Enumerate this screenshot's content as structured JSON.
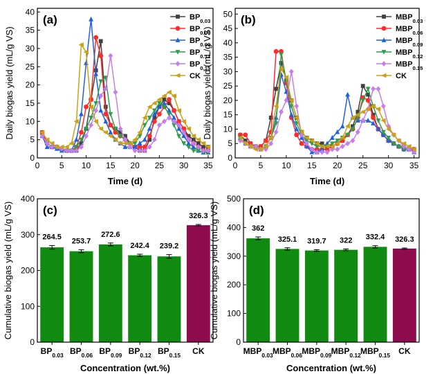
{
  "chart_data": [
    {
      "panel_label": "(a)",
      "type": "line",
      "xlabel": "Time (d)",
      "ylabel": "Daily biogas yield (mL/g VS)",
      "xlim": [
        0,
        36
      ],
      "ylim": [
        0,
        41
      ],
      "xticks": [
        0,
        5,
        10,
        15,
        20,
        25,
        30,
        35
      ],
      "yticks": [
        0,
        5,
        10,
        15,
        20,
        25,
        30,
        35,
        40
      ],
      "legend_position": "top-right",
      "x": [
        1,
        2,
        3,
        4,
        5,
        6,
        7,
        8,
        9,
        10,
        11,
        12,
        13,
        14,
        15,
        16,
        17,
        18,
        19,
        20,
        21,
        22,
        23,
        24,
        25,
        26,
        27,
        28,
        29,
        30,
        31,
        32,
        33,
        34,
        35
      ],
      "series": [
        {
          "name": "BP",
          "sub": "0.03",
          "color": "#404040",
          "marker": "square",
          "values": [
            7,
            4,
            3,
            3,
            2.5,
            2,
            2,
            2,
            4,
            8,
            16,
            24,
            32,
            14,
            9,
            8,
            7,
            6,
            4,
            3,
            2,
            2,
            5,
            11,
            14,
            16,
            15,
            13,
            10,
            8,
            6,
            5,
            4,
            3,
            3
          ]
        },
        {
          "name": "BP",
          "sub": "0.06",
          "color": "#ff2a2a",
          "marker": "circle",
          "values": [
            7,
            4,
            3,
            3,
            2.5,
            2,
            2,
            3,
            7,
            14,
            16,
            33,
            28,
            12,
            9,
            7,
            6,
            5,
            4,
            3,
            3,
            3,
            6,
            10,
            12,
            14,
            16,
            13,
            10,
            8,
            5,
            4,
            3,
            2,
            2
          ]
        },
        {
          "name": "BP",
          "sub": "0.09",
          "color": "#1f5fe0",
          "marker": "triangle-up",
          "values": [
            6,
            3,
            3,
            2.5,
            2,
            2,
            2,
            5,
            12,
            26,
            38,
            23,
            13,
            10,
            7,
            5,
            4,
            3,
            3,
            3,
            4,
            5,
            8,
            12,
            14,
            15,
            13,
            11,
            8,
            6,
            4,
            3,
            2,
            1.5,
            1.5
          ]
        },
        {
          "name": "BP",
          "sub": "0.12",
          "color": "#2e9e4e",
          "marker": "triangle-down",
          "values": [
            6,
            4,
            3,
            3,
            2.5,
            2,
            2,
            3,
            5,
            8,
            11,
            15,
            21,
            22,
            12,
            8,
            6,
            5,
            4,
            4,
            6,
            9,
            11,
            13,
            15,
            14,
            12,
            9,
            6,
            4,
            3,
            2,
            2,
            1.5,
            1.5
          ]
        },
        {
          "name": "BP",
          "sub": "0.15",
          "color": "#c77ded",
          "marker": "diamond",
          "values": [
            6,
            4,
            3,
            3,
            2.5,
            2,
            2,
            2,
            3,
            6,
            9,
            13,
            17,
            19,
            28,
            18,
            8,
            5,
            3,
            2,
            2,
            2,
            3,
            5,
            9,
            10,
            11,
            10,
            9,
            7,
            5,
            4,
            3,
            2,
            2
          ]
        },
        {
          "name": "CK",
          "sub": "",
          "color": "#c9a017",
          "marker": "triangle-left",
          "values": [
            7,
            5,
            4,
            3,
            3,
            3,
            4,
            10,
            31,
            29,
            14,
            10,
            8,
            7,
            6,
            5,
            4,
            4,
            4,
            5,
            7,
            11,
            14,
            15,
            16,
            17,
            18,
            17,
            13,
            10,
            8,
            6,
            5,
            4,
            3
          ]
        }
      ]
    },
    {
      "panel_label": "(b)",
      "type": "line",
      "xlabel": "Time (d)",
      "ylabel": "Daily biogas yield (mL/g VS)",
      "xlim": [
        0,
        36
      ],
      "ylim": [
        0,
        52
      ],
      "xticks": [
        0,
        5,
        10,
        15,
        20,
        25,
        30,
        35
      ],
      "yticks": [
        0,
        5,
        10,
        15,
        20,
        25,
        30,
        35,
        40,
        45,
        50
      ],
      "legend_position": "top-right",
      "x": [
        1,
        2,
        3,
        4,
        5,
        6,
        7,
        8,
        9,
        10,
        11,
        12,
        13,
        14,
        15,
        16,
        17,
        18,
        19,
        20,
        21,
        22,
        23,
        24,
        25,
        26,
        27,
        28,
        29,
        30,
        31,
        32,
        33,
        34,
        35
      ],
      "series": [
        {
          "name": "MBP",
          "sub": "0.03",
          "color": "#404040",
          "marker": "square",
          "values": [
            8,
            6,
            5,
            4,
            4,
            6,
            14,
            24,
            33,
            27,
            20,
            14,
            9,
            7,
            6,
            5,
            5,
            4,
            4,
            5,
            6,
            8,
            11,
            16,
            25,
            22,
            15,
            10,
            8,
            6,
            5,
            4,
            4,
            3,
            3
          ]
        },
        {
          "name": "MBP",
          "sub": "0.06",
          "color": "#ff2a2a",
          "marker": "circle",
          "values": [
            8,
            8,
            5,
            4,
            4,
            6,
            9,
            37,
            37,
            26,
            14,
            8,
            5,
            4,
            3,
            3,
            3,
            3,
            4,
            5,
            6,
            8,
            10,
            14,
            21,
            20,
            14,
            10,
            8,
            6,
            5,
            4,
            3,
            3,
            3
          ]
        },
        {
          "name": "MBP",
          "sub": "0.09",
          "color": "#1f5fe0",
          "marker": "triangle-up",
          "values": [
            7,
            5,
            4,
            4,
            3,
            4,
            7,
            14,
            29,
            23,
            15,
            10,
            7,
            4,
            2,
            2,
            3,
            5,
            7,
            9,
            11,
            22,
            14,
            13,
            13,
            13,
            12,
            10,
            8,
            6,
            5,
            4,
            3,
            3,
            2
          ]
        },
        {
          "name": "MBP",
          "sub": "0.12",
          "color": "#2e9e4e",
          "marker": "triangle-down",
          "values": [
            7,
            5,
            4,
            4,
            3,
            4,
            7,
            12,
            36,
            27,
            18,
            12,
            8,
            6,
            5,
            4,
            4,
            4,
            5,
            6,
            7,
            8,
            10,
            14,
            20,
            24,
            18,
            13,
            9,
            7,
            5,
            4,
            3,
            3,
            2
          ]
        },
        {
          "name": "MBP",
          "sub": "0.15",
          "color": "#c77ded",
          "marker": "diamond",
          "values": [
            6,
            5,
            4,
            4,
            3,
            3,
            5,
            9,
            16,
            20,
            30,
            18,
            8,
            5,
            3,
            2,
            2,
            2,
            3,
            3,
            4,
            5,
            6,
            9,
            13,
            17,
            24,
            24,
            18,
            11,
            8,
            6,
            4,
            3,
            2
          ]
        },
        {
          "name": "CK",
          "sub": "",
          "color": "#c9a017",
          "marker": "triangle-left",
          "values": [
            7,
            5,
            4,
            3,
            3,
            4,
            7,
            18,
            31,
            28,
            20,
            14,
            9,
            7,
            6,
            5,
            4,
            4,
            4,
            5,
            7,
            11,
            14,
            15,
            16,
            17,
            18,
            17,
            13,
            10,
            8,
            6,
            5,
            4,
            3
          ]
        }
      ]
    },
    {
      "panel_label": "(c)",
      "type": "bar",
      "xlabel": "Concentration (wt.%)",
      "ylabel": "Cumulative biogas yield (mL/g VS)",
      "ylim": [
        0,
        400
      ],
      "yticks": [
        0,
        100,
        200,
        300,
        400
      ],
      "categories": [
        {
          "name": "BP",
          "sub": "0.03"
        },
        {
          "name": "BP",
          "sub": "0.06"
        },
        {
          "name": "BP",
          "sub": "0.09"
        },
        {
          "name": "BP",
          "sub": "0.12"
        },
        {
          "name": "BP",
          "sub": "0.15"
        },
        {
          "name": "CK",
          "sub": ""
        }
      ],
      "values": [
        264.5,
        253.7,
        272.6,
        242.4,
        239.2,
        326.3
      ],
      "value_labels": [
        "264.5",
        "253.7",
        "272.6",
        "242.4",
        "239.2",
        "326.3"
      ],
      "errors": [
        5,
        4,
        4,
        3,
        5,
        2
      ],
      "colors": [
        "#108a10",
        "#108a10",
        "#108a10",
        "#108a10",
        "#108a10",
        "#8e0b4e"
      ]
    },
    {
      "panel_label": "(d)",
      "type": "bar",
      "xlabel": "Concentration (wt.%)",
      "ylabel": "Cumulative biogas yield (mL/g VS)",
      "ylim": [
        0,
        500
      ],
      "yticks": [
        0,
        100,
        200,
        300,
        400,
        500
      ],
      "categories": [
        {
          "name": "MBP",
          "sub": "0.03"
        },
        {
          "name": "MBP",
          "sub": "0.06"
        },
        {
          "name": "MBP",
          "sub": "0.09"
        },
        {
          "name": "MBP",
          "sub": "0.12"
        },
        {
          "name": "MBP",
          "sub": "0.15"
        },
        {
          "name": "CK",
          "sub": ""
        }
      ],
      "values": [
        362,
        325.1,
        319.7,
        322,
        332.4,
        326.3
      ],
      "value_labels": [
        "362",
        "325.1",
        "319.7",
        "322",
        "332.4",
        "326.3"
      ],
      "errors": [
        5,
        4,
        3,
        3,
        4,
        2
      ],
      "colors": [
        "#108a10",
        "#108a10",
        "#108a10",
        "#108a10",
        "#108a10",
        "#8e0b4e"
      ]
    }
  ]
}
